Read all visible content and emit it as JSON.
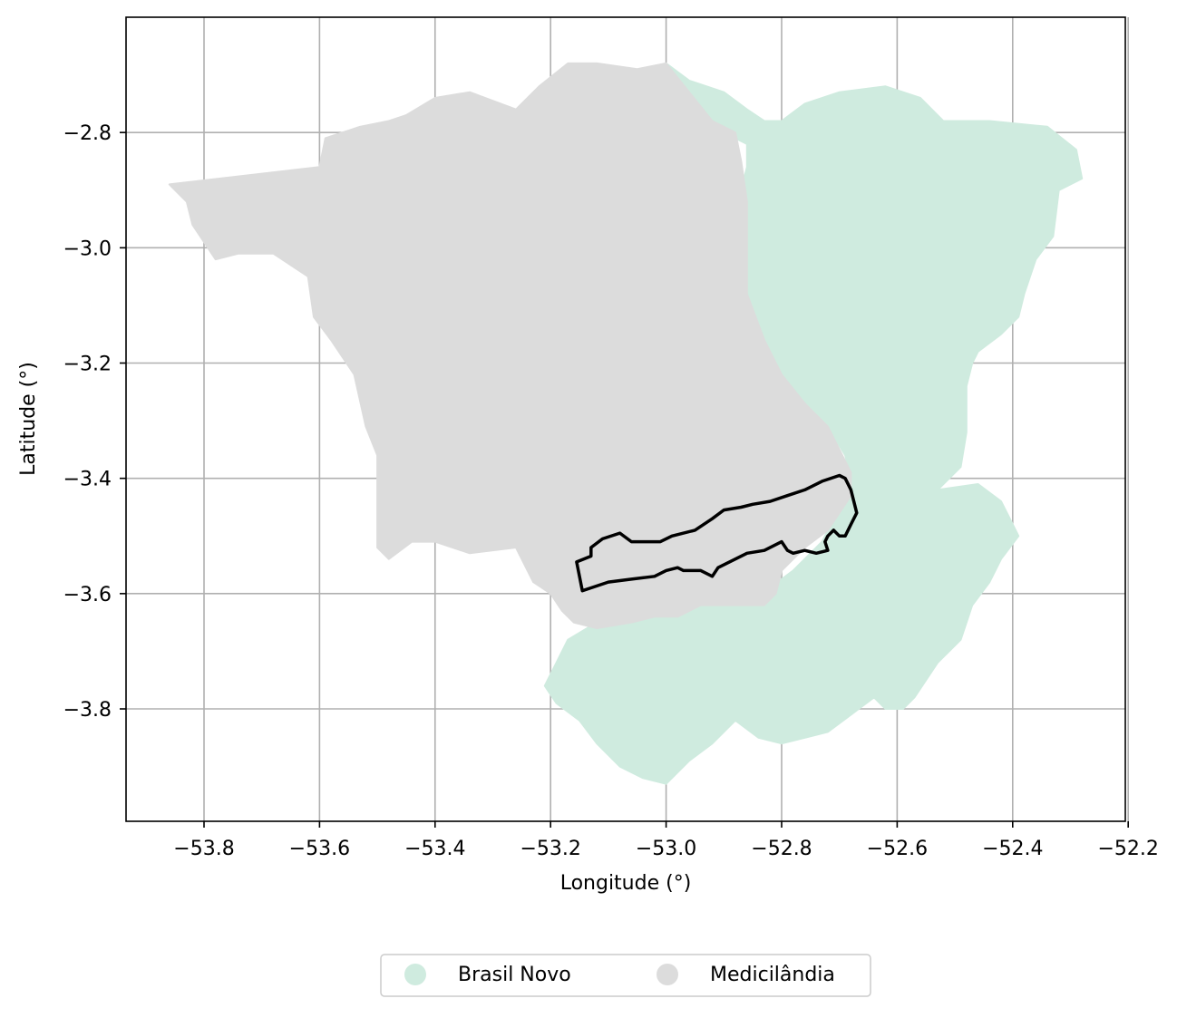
{
  "colors": {
    "brasil_novo": "#cfebdf",
    "medicilandia": "#dcdcdc",
    "outline": "#000000",
    "grid": "#b0b0b0"
  },
  "chart_data": {
    "type": "map",
    "title": "",
    "xlabel": "Longitude (°)",
    "ylabel": "Latitude (°)",
    "xlim": [
      -53.935,
      -52.205
    ],
    "ylim": [
      -3.995,
      -2.6
    ],
    "grid": true,
    "x_ticks": [
      {
        "value": -53.8,
        "label": "−53.8"
      },
      {
        "value": -53.6,
        "label": "−53.6"
      },
      {
        "value": -53.4,
        "label": "−53.4"
      },
      {
        "value": -53.2,
        "label": "−53.2"
      },
      {
        "value": -53.0,
        "label": "−53.0"
      },
      {
        "value": -52.8,
        "label": "−52.8"
      },
      {
        "value": -52.6,
        "label": "−52.6"
      },
      {
        "value": -52.4,
        "label": "−52.4"
      },
      {
        "value": -52.2,
        "label": "−52.2"
      }
    ],
    "y_ticks": [
      {
        "value": -2.8,
        "label": "−2.8"
      },
      {
        "value": -3.0,
        "label": "−3.0"
      },
      {
        "value": -3.2,
        "label": "−3.2"
      },
      {
        "value": -3.4,
        "label": "−3.4"
      },
      {
        "value": -3.6,
        "label": "−3.6"
      },
      {
        "value": -3.8,
        "label": "−3.8"
      }
    ],
    "legend": {
      "placement": "bottom-center",
      "items": [
        {
          "label": "Brasil Novo",
          "color": "#cfebdf"
        },
        {
          "label": "Medicilândia",
          "color": "#dcdcdc"
        }
      ]
    },
    "regions": [
      {
        "name": "Brasil Novo",
        "color": "#cfebdf",
        "coords": [
          [
            -53.0,
            -2.68
          ],
          [
            -52.96,
            -2.71
          ],
          [
            -52.9,
            -2.73
          ],
          [
            -52.86,
            -2.76
          ],
          [
            -52.83,
            -2.78
          ],
          [
            -52.8,
            -2.78
          ],
          [
            -52.76,
            -2.75
          ],
          [
            -52.7,
            -2.73
          ],
          [
            -52.62,
            -2.72
          ],
          [
            -52.56,
            -2.74
          ],
          [
            -52.52,
            -2.78
          ],
          [
            -52.44,
            -2.78
          ],
          [
            -52.34,
            -2.79
          ],
          [
            -52.29,
            -2.83
          ],
          [
            -52.28,
            -2.88
          ],
          [
            -52.32,
            -2.9
          ],
          [
            -52.33,
            -2.98
          ],
          [
            -52.36,
            -3.02
          ],
          [
            -52.38,
            -3.08
          ],
          [
            -52.39,
            -3.12
          ],
          [
            -52.42,
            -3.15
          ],
          [
            -52.46,
            -3.18
          ],
          [
            -52.47,
            -3.2
          ],
          [
            -52.48,
            -3.24
          ],
          [
            -52.48,
            -3.32
          ],
          [
            -52.49,
            -3.38
          ],
          [
            -52.53,
            -3.42
          ],
          [
            -52.46,
            -3.41
          ],
          [
            -52.42,
            -3.44
          ],
          [
            -52.4,
            -3.48
          ],
          [
            -52.39,
            -3.5
          ],
          [
            -52.42,
            -3.54
          ],
          [
            -52.44,
            -3.58
          ],
          [
            -52.47,
            -3.62
          ],
          [
            -52.49,
            -3.68
          ],
          [
            -52.53,
            -3.72
          ],
          [
            -52.57,
            -3.78
          ],
          [
            -52.59,
            -3.8
          ],
          [
            -52.62,
            -3.8
          ],
          [
            -52.64,
            -3.78
          ],
          [
            -52.68,
            -3.81
          ],
          [
            -52.72,
            -3.84
          ],
          [
            -52.8,
            -3.86
          ],
          [
            -52.84,
            -3.85
          ],
          [
            -52.88,
            -3.82
          ],
          [
            -52.92,
            -3.86
          ],
          [
            -52.96,
            -3.89
          ],
          [
            -53.0,
            -3.93
          ],
          [
            -53.04,
            -3.92
          ],
          [
            -53.08,
            -3.9
          ],
          [
            -53.12,
            -3.86
          ],
          [
            -53.15,
            -3.82
          ],
          [
            -53.19,
            -3.79
          ],
          [
            -53.21,
            -3.76
          ],
          [
            -53.19,
            -3.72
          ],
          [
            -53.17,
            -3.68
          ],
          [
            -53.12,
            -3.65
          ],
          [
            -53.06,
            -3.64
          ],
          [
            -53.0,
            -3.64
          ],
          [
            -52.93,
            -3.62
          ],
          [
            -52.87,
            -3.61
          ],
          [
            -52.82,
            -3.59
          ],
          [
            -52.78,
            -3.56
          ],
          [
            -52.73,
            -3.51
          ],
          [
            -52.7,
            -3.45
          ],
          [
            -52.68,
            -3.4
          ],
          [
            -52.69,
            -3.36
          ],
          [
            -52.72,
            -3.31
          ],
          [
            -52.76,
            -3.27
          ],
          [
            -52.8,
            -3.22
          ],
          [
            -52.83,
            -3.16
          ],
          [
            -52.86,
            -3.08
          ],
          [
            -52.87,
            -3.0
          ],
          [
            -52.87,
            -2.95
          ],
          [
            -52.87,
            -2.9
          ],
          [
            -52.86,
            -2.86
          ],
          [
            -52.86,
            -2.82
          ],
          [
            -52.92,
            -2.79
          ],
          [
            -52.96,
            -2.75
          ]
        ]
      },
      {
        "name": "Medicilândia",
        "color": "#dcdcdc",
        "coords": [
          [
            -53.86,
            -2.89
          ],
          [
            -53.6,
            -2.86
          ],
          [
            -53.59,
            -2.81
          ],
          [
            -53.53,
            -2.79
          ],
          [
            -53.48,
            -2.78
          ],
          [
            -53.45,
            -2.77
          ],
          [
            -53.4,
            -2.74
          ],
          [
            -53.34,
            -2.73
          ],
          [
            -53.26,
            -2.76
          ],
          [
            -53.22,
            -2.72
          ],
          [
            -53.17,
            -2.68
          ],
          [
            -53.12,
            -2.68
          ],
          [
            -53.05,
            -2.69
          ],
          [
            -53.0,
            -2.68
          ],
          [
            -52.96,
            -2.73
          ],
          [
            -52.92,
            -2.78
          ],
          [
            -52.88,
            -2.8
          ],
          [
            -52.87,
            -2.85
          ],
          [
            -52.86,
            -2.92
          ],
          [
            -52.86,
            -3.0
          ],
          [
            -52.86,
            -3.08
          ],
          [
            -52.83,
            -3.16
          ],
          [
            -52.8,
            -3.22
          ],
          [
            -52.76,
            -3.27
          ],
          [
            -52.72,
            -3.31
          ],
          [
            -52.7,
            -3.35
          ],
          [
            -52.68,
            -3.39
          ],
          [
            -52.68,
            -3.43
          ],
          [
            -52.7,
            -3.46
          ],
          [
            -52.72,
            -3.49
          ],
          [
            -52.76,
            -3.52
          ],
          [
            -52.8,
            -3.56
          ],
          [
            -52.81,
            -3.6
          ],
          [
            -52.83,
            -3.62
          ],
          [
            -52.88,
            -3.62
          ],
          [
            -52.94,
            -3.62
          ],
          [
            -52.98,
            -3.64
          ],
          [
            -53.02,
            -3.64
          ],
          [
            -53.06,
            -3.65
          ],
          [
            -53.12,
            -3.66
          ],
          [
            -53.16,
            -3.65
          ],
          [
            -53.18,
            -3.63
          ],
          [
            -53.2,
            -3.6
          ],
          [
            -53.23,
            -3.58
          ],
          [
            -53.26,
            -3.52
          ],
          [
            -53.34,
            -3.53
          ],
          [
            -53.4,
            -3.51
          ],
          [
            -53.44,
            -3.51
          ],
          [
            -53.48,
            -3.54
          ],
          [
            -53.5,
            -3.52
          ],
          [
            -53.5,
            -3.42
          ],
          [
            -53.5,
            -3.36
          ],
          [
            -53.52,
            -3.31
          ],
          [
            -53.54,
            -3.22
          ],
          [
            -53.58,
            -3.16
          ],
          [
            -53.61,
            -3.12
          ],
          [
            -53.62,
            -3.05
          ],
          [
            -53.68,
            -3.01
          ],
          [
            -53.74,
            -3.01
          ],
          [
            -53.78,
            -3.02
          ],
          [
            -53.82,
            -2.96
          ],
          [
            -53.83,
            -2.92
          ]
        ]
      }
    ],
    "outline": {
      "coords": [
        [
          -53.155,
          -3.545
        ],
        [
          -53.13,
          -3.535
        ],
        [
          -53.13,
          -3.52
        ],
        [
          -53.11,
          -3.505
        ],
        [
          -53.08,
          -3.495
        ],
        [
          -53.06,
          -3.51
        ],
        [
          -53.03,
          -3.51
        ],
        [
          -53.01,
          -3.51
        ],
        [
          -52.99,
          -3.5
        ],
        [
          -52.95,
          -3.49
        ],
        [
          -52.92,
          -3.47
        ],
        [
          -52.9,
          -3.455
        ],
        [
          -52.87,
          -3.45
        ],
        [
          -52.85,
          -3.445
        ],
        [
          -52.82,
          -3.44
        ],
        [
          -52.79,
          -3.43
        ],
        [
          -52.76,
          -3.42
        ],
        [
          -52.73,
          -3.405
        ],
        [
          -52.7,
          -3.395
        ],
        [
          -52.69,
          -3.4
        ],
        [
          -52.68,
          -3.42
        ],
        [
          -52.675,
          -3.44
        ],
        [
          -52.67,
          -3.46
        ],
        [
          -52.68,
          -3.48
        ],
        [
          -52.69,
          -3.5
        ],
        [
          -52.7,
          -3.5
        ],
        [
          -52.71,
          -3.49
        ],
        [
          -52.72,
          -3.5
        ],
        [
          -52.725,
          -3.51
        ],
        [
          -52.72,
          -3.525
        ],
        [
          -52.74,
          -3.53
        ],
        [
          -52.76,
          -3.525
        ],
        [
          -52.78,
          -3.53
        ],
        [
          -52.79,
          -3.525
        ],
        [
          -52.8,
          -3.51
        ],
        [
          -52.83,
          -3.525
        ],
        [
          -52.86,
          -3.53
        ],
        [
          -52.88,
          -3.54
        ],
        [
          -52.91,
          -3.555
        ],
        [
          -52.92,
          -3.57
        ],
        [
          -52.94,
          -3.56
        ],
        [
          -52.97,
          -3.56
        ],
        [
          -52.98,
          -3.555
        ],
        [
          -53.0,
          -3.56
        ],
        [
          -53.02,
          -3.57
        ],
        [
          -53.06,
          -3.575
        ],
        [
          -53.1,
          -3.58
        ],
        [
          -53.13,
          -3.59
        ],
        [
          -53.145,
          -3.595
        ]
      ]
    }
  }
}
